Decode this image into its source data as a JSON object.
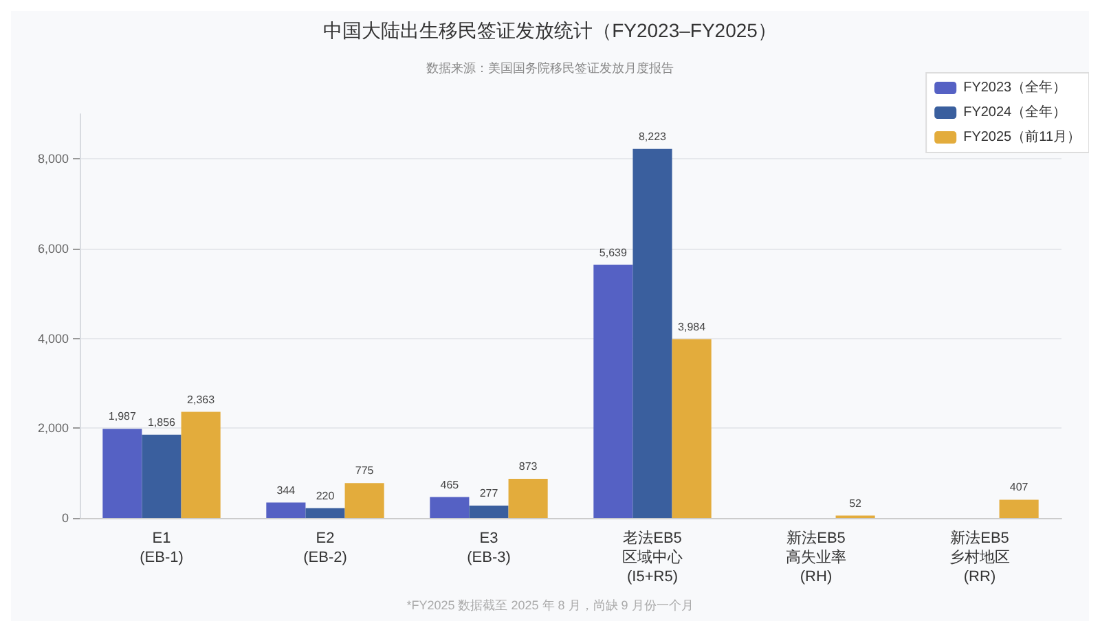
{
  "chart_data": {
    "type": "bar",
    "title": "中国大陆出生移民签证发放统计（FY2023–FY2025）",
    "subtitle": "数据来源：美国国务院移民签证发放月度报告",
    "annotations": [
      "*FY2025 数据截至 2025 年 8 月，尚缺 9 月份一个月"
    ],
    "categories": [
      "E1\n(EB-1)",
      "E2\n(EB-2)",
      "E3\n(EB-3)",
      "老法EB5\n区域中心\n(I5+R5)",
      "新法EB5\n高失业率\n(RH)",
      "新法EB5\n乡村地区\n(RR)"
    ],
    "series": [
      {
        "name": "FY2023（全年）",
        "color": "#5561c4",
        "values": [
          1987,
          344,
          465,
          5639,
          null,
          null
        ],
        "value_labels": [
          "1,987",
          "344",
          "465",
          "5,639",
          null,
          null
        ]
      },
      {
        "name": "FY2024（全年）",
        "color": "#3a5f9e",
        "values": [
          1856,
          220,
          277,
          8223,
          null,
          null
        ],
        "value_labels": [
          "1,856",
          "220",
          "277",
          "8,223",
          null,
          null
        ]
      },
      {
        "name": "FY2025（前11月）",
        "color": "#e3ac3c",
        "values": [
          2363,
          775,
          873,
          3984,
          52,
          407
        ],
        "value_labels": [
          "2,363",
          "775",
          "873",
          "3,984",
          "52",
          "407"
        ]
      }
    ],
    "ylim": [
      0,
      9000
    ],
    "yticks": [
      {
        "value": 0,
        "label": "0"
      },
      {
        "value": 2000,
        "label": "2,000"
      },
      {
        "value": 4000,
        "label": "4,000"
      },
      {
        "value": 6000,
        "label": "6,000"
      },
      {
        "value": 8000,
        "label": "8,000"
      }
    ],
    "grid": "y",
    "legend": "top right"
  }
}
